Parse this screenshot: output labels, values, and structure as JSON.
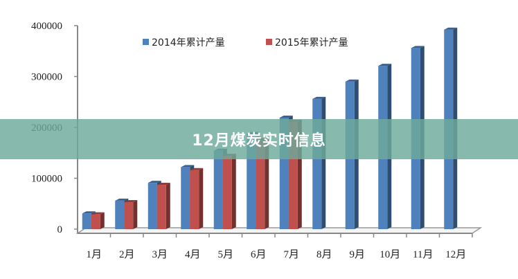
{
  "banner": {
    "title": "12月煤炭实时信息"
  },
  "chart_data": {
    "type": "bar",
    "categories": [
      "1月",
      "2月",
      "3月",
      "4月",
      "5月",
      "6月",
      "7月",
      "8月",
      "9月",
      "10月",
      "11月",
      "12月"
    ],
    "series": [
      {
        "name": "2014年累计产量",
        "color": "#4f81bd",
        "values": [
          31000,
          56000,
          91000,
          122000,
          154000,
          187000,
          219000,
          256000,
          290000,
          321000,
          356000,
          392000
        ]
      },
      {
        "name": "2015年累计产量",
        "color": "#c0504d",
        "values": [
          29000,
          53000,
          87000,
          116000,
          144000,
          175000,
          211000,
          null,
          null,
          null,
          null,
          null
        ]
      }
    ],
    "ylim": [
      0,
      400000
    ],
    "yticks": [
      0,
      100000,
      200000,
      300000,
      400000
    ],
    "grid": false,
    "legend": "top",
    "style": "3d-column"
  }
}
